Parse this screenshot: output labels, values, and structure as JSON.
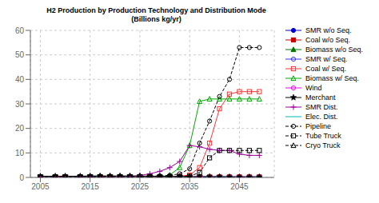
{
  "chart_data": {
    "type": "line",
    "title": "H2 Production by Production Technology and Distribution Mode",
    "subtitle": "(Billions kg/yr)",
    "x": [
      2005,
      2008,
      2010,
      2013,
      2015,
      2017,
      2019,
      2021,
      2023,
      2025,
      2027,
      2029,
      2031,
      2033,
      2035,
      2037,
      2039,
      2041,
      2043,
      2045,
      2047,
      2049
    ],
    "xlim": [
      2003,
      2052
    ],
    "xticks": [
      2005,
      2015,
      2025,
      2035,
      2045
    ],
    "ylim": [
      0,
      60
    ],
    "yticks": [
      0,
      10,
      20,
      30,
      40,
      50,
      60
    ],
    "grid": true,
    "legend": "right",
    "series": [
      {
        "name": "SMR w/o Seq.",
        "color": "#0000CC",
        "marker": "circle",
        "line_style": "solid",
        "values": [
          0.3,
          0.3,
          0.3,
          0.3,
          0.3,
          0.3,
          0.3,
          0.3,
          0.3,
          0.3,
          0.3,
          0.3,
          0.3,
          0.3,
          0.3,
          0.3,
          0.3,
          0.3,
          0.3,
          0.3,
          0.3,
          0.3
        ]
      },
      {
        "name": "Coal w/o Seq.",
        "color": "#CC0000",
        "marker": "square",
        "line_style": "solid",
        "values": [
          0.2,
          0.2,
          0.2,
          0.2,
          0.2,
          0.2,
          0.2,
          0.2,
          0.2,
          0.2,
          0.2,
          0.2,
          0.2,
          0.2,
          0.2,
          0.2,
          0.2,
          0.2,
          0.2,
          0.2,
          0.2,
          0.2
        ]
      },
      {
        "name": "Biomass w/o Seq.",
        "color": "#007700",
        "marker": "triangle",
        "line_style": "solid",
        "values": [
          0.1,
          0.1,
          0.1,
          0.1,
          0.1,
          0.1,
          0.1,
          0.1,
          0.1,
          0.1,
          0.1,
          0.1,
          0.1,
          0.1,
          0.1,
          0.1,
          0.1,
          0.1,
          0.1,
          0.1,
          0.1,
          0.1
        ]
      },
      {
        "name": "SMR w/ Seq.",
        "color": "#3333FF",
        "marker": "open-circle",
        "line_style": "solid",
        "values": [
          0.0,
          0.0,
          0.0,
          0.0,
          0.0,
          0.0,
          0.0,
          0.0,
          0.0,
          0.0,
          0.0,
          0.0,
          0.0,
          0.0,
          0.0,
          0.0,
          0.0,
          0.0,
          0.0,
          0.0,
          0.0,
          0.0
        ]
      },
      {
        "name": "Coal w/ Seq.",
        "color": "#FF3333",
        "marker": "open-square",
        "line_style": "solid",
        "values": [
          0.0,
          0.0,
          0.0,
          0.0,
          0.0,
          0.0,
          0.0,
          0.0,
          0.0,
          0.0,
          0.0,
          0.0,
          0.0,
          0.5,
          1.0,
          4.0,
          14.0,
          28.0,
          34.0,
          35.0,
          35.0,
          35.0
        ]
      },
      {
        "name": "Biomass w/ Seq.",
        "color": "#00AA00",
        "marker": "open-triangle",
        "line_style": "solid",
        "values": [
          0.0,
          0.0,
          0.0,
          0.0,
          0.0,
          0.0,
          0.0,
          0.0,
          0.0,
          0.0,
          0.0,
          0.0,
          1.0,
          4.0,
          13.0,
          31.0,
          32.0,
          32.0,
          32.0,
          32.0,
          32.0,
          32.0
        ]
      },
      {
        "name": "Wind",
        "color": "#EE00EE",
        "marker": "open-circle",
        "line_style": "solid",
        "values": [
          0.0,
          0.0,
          0.0,
          0.0,
          0.0,
          0.0,
          0.0,
          0.0,
          0.0,
          0.0,
          0.0,
          0.0,
          0.0,
          0.0,
          0.0,
          0.0,
          0.0,
          0.0,
          0.0,
          0.0,
          0.0,
          0.0
        ]
      },
      {
        "name": "Merchant",
        "color": "#000000",
        "marker": "star",
        "line_style": "solid",
        "values": [
          0.5,
          0.5,
          0.5,
          0.5,
          0.6,
          0.6,
          0.6,
          0.6,
          0.6,
          0.6,
          0.5,
          0.5,
          0.4,
          0.4,
          0.3,
          0.3,
          0.3,
          0.3,
          0.2,
          0.2,
          0.2,
          0.2
        ]
      },
      {
        "name": "SMR Dist.",
        "color": "#990099",
        "marker": "plus",
        "line_style": "solid",
        "values": [
          0.0,
          0.0,
          0.0,
          0.0,
          0.0,
          0.0,
          0.0,
          0.1,
          0.3,
          0.8,
          1.5,
          2.5,
          4.0,
          6.5,
          13.0,
          12.5,
          11.5,
          11.0,
          11.0,
          9.5,
          9.0,
          9.0
        ]
      },
      {
        "name": "Elec. Dist.",
        "color": "#00BBBB",
        "marker": "none",
        "line_style": "solid",
        "values": [
          0.0,
          0.0,
          0.0,
          0.0,
          0.0,
          0.0,
          0.0,
          0.0,
          0.0,
          0.0,
          0.0,
          0.0,
          0.0,
          0.0,
          0.0,
          0.0,
          0.0,
          0.0,
          0.0,
          0.0,
          0.0,
          0.0
        ]
      },
      {
        "name": "Pipeline",
        "color": "#000000",
        "marker": "open-circle",
        "line_style": "dashed",
        "values": [
          0.3,
          0.3,
          0.4,
          0.4,
          0.4,
          0.5,
          0.5,
          0.5,
          0.5,
          0.5,
          0.5,
          0.6,
          0.8,
          1.5,
          3.5,
          14.0,
          23.0,
          33.0,
          40.0,
          53.0,
          53.0,
          53.0
        ]
      },
      {
        "name": "Tube Truck",
        "color": "#000000",
        "marker": "open-square",
        "line_style": "dashed",
        "values": [
          0.3,
          0.3,
          0.3,
          0.3,
          0.3,
          0.3,
          0.3,
          0.3,
          0.3,
          0.3,
          0.3,
          0.3,
          0.3,
          0.3,
          0.5,
          2.0,
          8.0,
          11.0,
          11.0,
          11.0,
          11.0,
          11.0
        ]
      },
      {
        "name": "Cryo Truck",
        "color": "#000000",
        "marker": "open-triangle",
        "line_style": "dashed",
        "values": [
          0.1,
          0.1,
          0.1,
          0.1,
          0.1,
          0.1,
          0.1,
          0.1,
          0.1,
          0.1,
          0.1,
          0.1,
          0.1,
          0.1,
          0.1,
          0.1,
          0.1,
          0.1,
          0.1,
          0.1,
          0.1,
          0.1
        ]
      }
    ]
  }
}
